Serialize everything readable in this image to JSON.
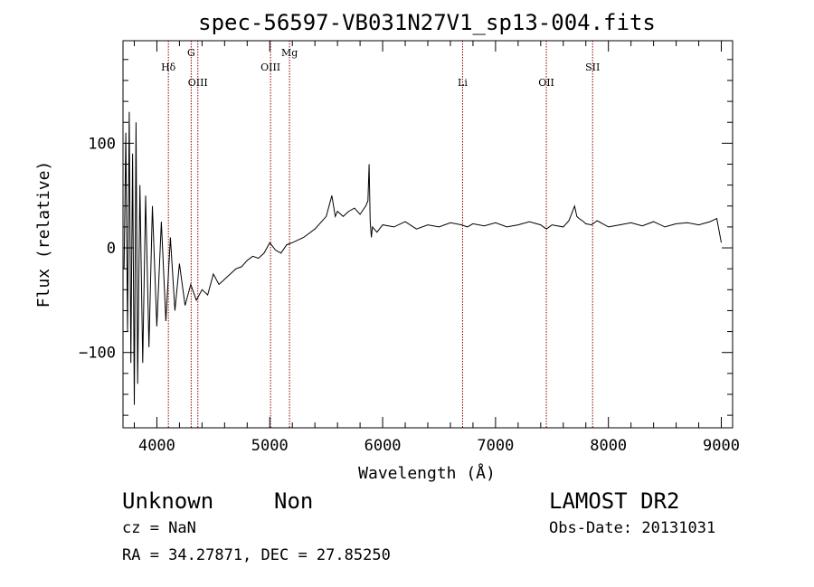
{
  "chart_data": {
    "type": "line",
    "title": "spec-56597-VB031N27V1_sp13-004.fits",
    "xlabel": "Wavelength (Å)",
    "ylabel": "Flux (relative)",
    "xlim": [
      3700,
      9100
    ],
    "ylim": [
      -172,
      198
    ],
    "xticks": [
      4000,
      5000,
      6000,
      7000,
      8000,
      9000
    ],
    "yticks": [
      -100,
      0,
      100
    ],
    "grid": false,
    "line_color": "#000000",
    "marker_color": "#8b0000",
    "lines": [
      {
        "label": "Hδ",
        "wavelength": 4102,
        "row": 1
      },
      {
        "label": "G",
        "wavelength": 4304,
        "row": 0
      },
      {
        "label": "OIII",
        "wavelength": 4363,
        "row": 2
      },
      {
        "label": "OIII",
        "wavelength": 5007,
        "row": 1
      },
      {
        "label": "Mg",
        "wavelength": 5175,
        "row": 0
      },
      {
        "label": "Li",
        "wavelength": 6708,
        "row": 2
      },
      {
        "label": "OII",
        "wavelength": 7450,
        "row": 2
      },
      {
        "label": "SII",
        "wavelength": 7860,
        "row": 1
      }
    ],
    "spectrum": {
      "x": [
        3710,
        3725,
        3740,
        3755,
        3770,
        3785,
        3800,
        3815,
        3830,
        3850,
        3875,
        3900,
        3930,
        3960,
        4000,
        4040,
        4080,
        4120,
        4160,
        4200,
        4250,
        4300,
        4350,
        4400,
        4450,
        4500,
        4550,
        4600,
        4650,
        4700,
        4750,
        4800,
        4850,
        4900,
        4950,
        5000,
        5050,
        5100,
        5150,
        5200,
        5300,
        5400,
        5500,
        5550,
        5580,
        5600,
        5650,
        5700,
        5750,
        5800,
        5850,
        5870,
        5880,
        5890,
        5900,
        5910,
        5950,
        6000,
        6100,
        6200,
        6300,
        6400,
        6500,
        6600,
        6700,
        6750,
        6800,
        6900,
        7000,
        7100,
        7200,
        7300,
        7400,
        7450,
        7500,
        7600,
        7650,
        7700,
        7720,
        7740,
        7780,
        7800,
        7850,
        7900,
        8000,
        8100,
        8200,
        8300,
        8400,
        8500,
        8600,
        8700,
        8800,
        8900,
        8960,
        9000
      ],
      "y": [
        -20,
        110,
        -80,
        130,
        -110,
        90,
        -150,
        120,
        -130,
        60,
        -110,
        50,
        -95,
        40,
        -75,
        25,
        -70,
        10,
        -60,
        -15,
        -55,
        -35,
        -50,
        -40,
        -45,
        -25,
        -35,
        -30,
        -25,
        -20,
        -18,
        -12,
        -8,
        -10,
        -5,
        5,
        -2,
        -5,
        3,
        5,
        10,
        18,
        30,
        50,
        30,
        35,
        30,
        35,
        38,
        32,
        40,
        45,
        80,
        25,
        10,
        20,
        15,
        22,
        20,
        25,
        18,
        22,
        20,
        24,
        22,
        20,
        23,
        21,
        24,
        20,
        22,
        25,
        22,
        18,
        22,
        20,
        26,
        40,
        30,
        28,
        25,
        23,
        22,
        26,
        20,
        22,
        24,
        21,
        25,
        20,
        23,
        24,
        22,
        25,
        28,
        5
      ]
    }
  },
  "info": {
    "class": "Unknown",
    "subclass": "Non",
    "cz": "cz = NaN",
    "coords": "RA =  34.27871, DEC =  27.85250",
    "survey": "LAMOST DR2",
    "obs_date": "Obs-Date: 20131031"
  }
}
